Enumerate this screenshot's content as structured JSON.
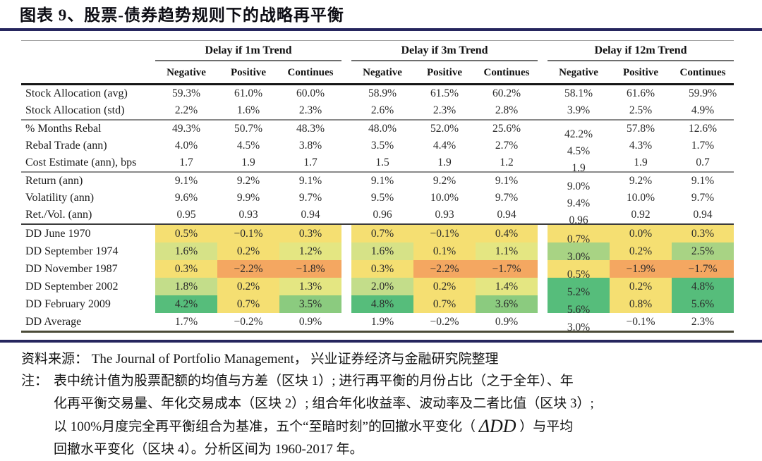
{
  "title": "图表 9、股票-债券趋势规则下的战略再平衡",
  "palette": {
    "yellow": "#F5DF72",
    "yellow_green": "#E4E682",
    "green_1": "#D6E287",
    "green_2": "#C3DD8A",
    "green_3": "#A8D384",
    "green_4": "#8BCB7F",
    "green_5": "#56BD7B",
    "orange": "#F4A761",
    "rule_navy": "#26265E"
  },
  "table": {
    "groups": [
      "Delay if 1m Trend",
      "Delay if 3m Trend",
      "Delay if 12m Trend"
    ],
    "subheaders": [
      "Negative",
      "Positive",
      "Continues"
    ],
    "blocks": [
      {
        "rows": [
          {
            "label": "Stock Allocation (avg)",
            "values": [
              "59.3%",
              "61.0%",
              "60.0%",
              "58.9%",
              "61.5%",
              "60.2%",
              "58.1%",
              "61.6%",
              "59.9%"
            ]
          },
          {
            "label": "Stock Allocation (std)",
            "values": [
              "2.2%",
              "1.6%",
              "2.3%",
              "2.6%",
              "2.3%",
              "2.8%",
              "3.9%",
              "2.5%",
              "4.9%"
            ]
          }
        ]
      },
      {
        "rows": [
          {
            "label": "% Months Rebal",
            "values": [
              "49.3%",
              "50.7%",
              "48.3%",
              "48.0%",
              "52.0%",
              "25.6%",
              "42.2%",
              "57.8%",
              "12.6%"
            ]
          },
          {
            "label": "Rebal Trade (ann)",
            "values": [
              "4.0%",
              "4.5%",
              "3.8%",
              "3.5%",
              "4.4%",
              "2.7%",
              "4.5%",
              "4.3%",
              "1.7%"
            ]
          },
          {
            "label": "Cost Estimate (ann), bps",
            "values": [
              "1.7",
              "1.9",
              "1.7",
              "1.5",
              "1.9",
              "1.2",
              "1.9",
              "1.9",
              "0.7"
            ]
          }
        ]
      },
      {
        "rows": [
          {
            "label": "Return (ann)",
            "values": [
              "9.1%",
              "9.2%",
              "9.1%",
              "9.1%",
              "9.2%",
              "9.1%",
              "9.0%",
              "9.2%",
              "9.1%"
            ]
          },
          {
            "label": "Volatility (ann)",
            "values": [
              "9.6%",
              "9.9%",
              "9.7%",
              "9.5%",
              "10.0%",
              "9.7%",
              "9.4%",
              "10.0%",
              "9.7%"
            ]
          },
          {
            "label": "Ret./Vol. (ann)",
            "values": [
              "0.95",
              "0.93",
              "0.94",
              "0.96",
              "0.93",
              "0.94",
              "0.96",
              "0.92",
              "0.94"
            ]
          }
        ]
      },
      {
        "rows": [
          {
            "label": "DD June 1970",
            "values": [
              "0.5%",
              "−0.1%",
              "0.3%",
              "0.7%",
              "−0.1%",
              "0.4%",
              "0.7%",
              "0.0%",
              "0.3%"
            ],
            "colors": [
              "yellow",
              "yellow",
              "yellow",
              "yellow",
              "yellow",
              "yellow",
              "yellow",
              "yellow",
              "yellow"
            ]
          },
          {
            "label": "DD September 1974",
            "values": [
              "1.6%",
              "0.2%",
              "1.2%",
              "1.6%",
              "0.1%",
              "1.1%",
              "3.0%",
              "0.2%",
              "2.5%"
            ],
            "colors": [
              "green_1",
              "yellow",
              "yellow_green",
              "green_1",
              "yellow",
              "yellow_green",
              "green_3",
              "yellow",
              "green_3"
            ]
          },
          {
            "label": "DD November 1987",
            "values": [
              "0.3%",
              "−2.2%",
              "−1.8%",
              "0.3%",
              "−2.2%",
              "−1.7%",
              "0.5%",
              "−1.9%",
              "−1.7%"
            ],
            "colors": [
              "yellow",
              "orange",
              "orange",
              "yellow",
              "orange",
              "orange",
              "yellow",
              "orange",
              "orange"
            ]
          },
          {
            "label": "DD September 2002",
            "values": [
              "1.8%",
              "0.2%",
              "1.3%",
              "2.0%",
              "0.2%",
              "1.4%",
              "5.2%",
              "0.2%",
              "4.8%"
            ],
            "colors": [
              "green_2",
              "yellow",
              "yellow_green",
              "green_2",
              "yellow",
              "yellow_green",
              "green_5",
              "yellow",
              "green_5"
            ]
          },
          {
            "label": "DD February 2009",
            "values": [
              "4.2%",
              "0.7%",
              "3.5%",
              "4.8%",
              "0.7%",
              "3.6%",
              "5.6%",
              "0.8%",
              "5.6%"
            ],
            "colors": [
              "green_5",
              "yellow",
              "green_4",
              "green_5",
              "yellow",
              "green_4",
              "green_5",
              "yellow",
              "green_5"
            ]
          },
          {
            "label": "DD Average",
            "values": [
              "1.7%",
              "−0.2%",
              "0.9%",
              "1.9%",
              "−0.2%",
              "0.9%",
              "3.0%",
              "−0.1%",
              "2.3%"
            ]
          }
        ]
      }
    ]
  },
  "footer": {
    "source": "资料来源： The Journal of Portfolio Management， 兴业证券经济与金融研究院整理",
    "note_label": "注：",
    "note_line1": "表中统计值为股票配额的均值与方差（区块 1）; 进行再平衡的月份占比（之于全年）、年",
    "note_line2": "化再平衡交易量、年化交易成本（区块 2）; 组合年化收益率、波动率及二者比值（区块 3）;",
    "note_line3_prefix": "以 100%月度完全再平衡组合为基准，五个“至暗时刻”的回撤水平变化（ ",
    "note_line3_math": "ΔDD",
    "note_line3_suffix": " ）与平均",
    "note_line4": "回撤水平变化（区块 4）。分析区间为 1960-2017 年。"
  }
}
